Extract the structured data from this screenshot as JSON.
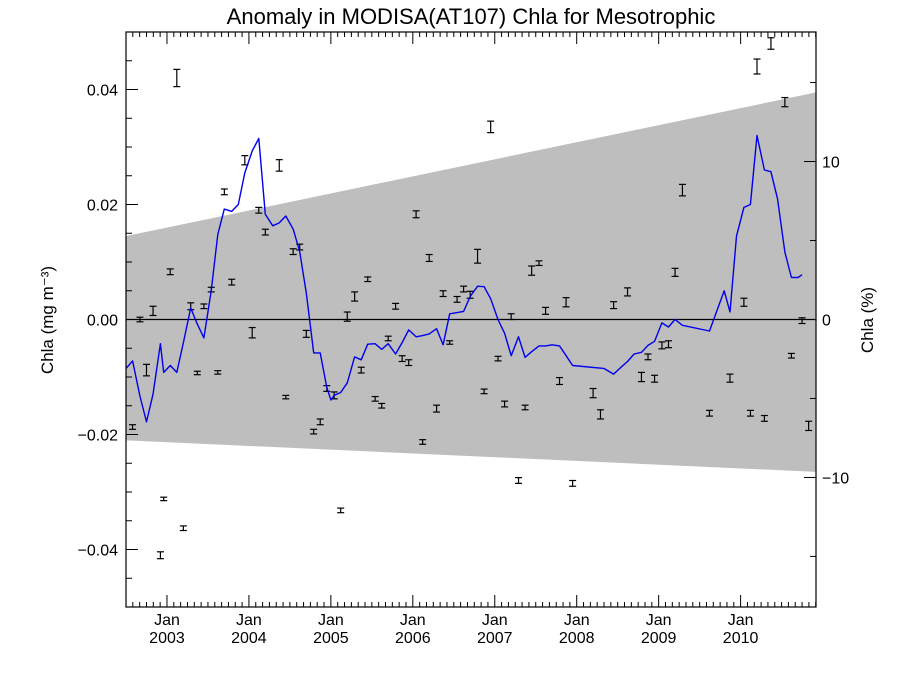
{
  "chart_data": {
    "type": "line",
    "title": "Anomaly in MODISA(AT107) Chla for Mesotrophic",
    "ylabel_left": "Chla (mg m⁻³)",
    "ylabel_right": "Chla (%)",
    "x_range": [
      2002.5,
      2010.92
    ],
    "ylim_left": [
      -0.05,
      0.05
    ],
    "ylim_right": [
      -18.2,
      18.2
    ],
    "x_ticks": [
      {
        "value": 2003.0,
        "month": "Jan",
        "year": "2003"
      },
      {
        "value": 2004.0,
        "month": "Jan",
        "year": "2004"
      },
      {
        "value": 2005.0,
        "month": "Jan",
        "year": "2005"
      },
      {
        "value": 2006.0,
        "month": "Jan",
        "year": "2006"
      },
      {
        "value": 2007.0,
        "month": "Jan",
        "year": "2007"
      },
      {
        "value": 2008.0,
        "month": "Jan",
        "year": "2008"
      },
      {
        "value": 2009.0,
        "month": "Jan",
        "year": "2009"
      },
      {
        "value": 2010.0,
        "month": "Jan",
        "year": "2010"
      }
    ],
    "y_ticks_left": [
      {
        "value": 0.04,
        "label": "0.04"
      },
      {
        "value": 0.02,
        "label": "0.02"
      },
      {
        "value": 0.0,
        "label": "0.00"
      },
      {
        "value": -0.02,
        "label": "−0.02"
      },
      {
        "value": -0.04,
        "label": "−0.04"
      }
    ],
    "y_ticks_right": [
      {
        "value": 10,
        "label": "10"
      },
      {
        "value": 0,
        "label": "0"
      },
      {
        "value": -10,
        "label": "−10"
      }
    ],
    "band": {
      "upper": [
        [
          2002.5,
          0.0145
        ],
        [
          2010.92,
          0.0395
        ]
      ],
      "lower": [
        [
          2002.5,
          -0.021
        ],
        [
          2010.92,
          -0.0265
        ]
      ],
      "color": "#bebebe"
    },
    "zero_line": 0,
    "series": [
      {
        "style": "line",
        "color": "#0000ee",
        "points": [
          [
            2002.5,
            -0.0085
          ],
          [
            2002.58,
            -0.0072
          ],
          [
            2002.67,
            -0.0133
          ],
          [
            2002.75,
            -0.0178
          ],
          [
            2002.83,
            -0.013
          ],
          [
            2002.92,
            -0.0042
          ],
          [
            2002.96,
            -0.0092
          ],
          [
            2003.04,
            -0.008
          ],
          [
            2003.12,
            -0.0092
          ],
          [
            2003.2,
            -0.004
          ],
          [
            2003.29,
            0.002
          ],
          [
            2003.37,
            -0.0008
          ],
          [
            2003.45,
            -0.0032
          ],
          [
            2003.54,
            0.005
          ],
          [
            2003.62,
            0.0148
          ],
          [
            2003.7,
            0.0192
          ],
          [
            2003.79,
            0.0188
          ],
          [
            2003.87,
            0.02
          ],
          [
            2003.95,
            0.0255
          ],
          [
            2004.04,
            0.0293
          ],
          [
            2004.12,
            0.0315
          ],
          [
            2004.2,
            0.0183
          ],
          [
            2004.29,
            0.0163
          ],
          [
            2004.37,
            0.0168
          ],
          [
            2004.45,
            0.018
          ],
          [
            2004.54,
            0.0157
          ],
          [
            2004.62,
            0.0118
          ],
          [
            2004.7,
            0.0046
          ],
          [
            2004.79,
            -0.0058
          ],
          [
            2004.87,
            -0.0058
          ],
          [
            2004.95,
            -0.0118
          ],
          [
            2005.0,
            -0.014
          ],
          [
            2005.04,
            -0.0132
          ],
          [
            2005.12,
            -0.0127
          ],
          [
            2005.2,
            -0.011
          ],
          [
            2005.29,
            -0.0065
          ],
          [
            2005.37,
            -0.007
          ],
          [
            2005.45,
            -0.0043
          ],
          [
            2005.54,
            -0.0042
          ],
          [
            2005.62,
            -0.0052
          ],
          [
            2005.7,
            -0.0042
          ],
          [
            2005.79,
            -0.006
          ],
          [
            2005.87,
            -0.004
          ],
          [
            2005.95,
            -0.0018
          ],
          [
            2006.04,
            -0.003
          ],
          [
            2006.12,
            -0.0028
          ],
          [
            2006.2,
            -0.0025
          ],
          [
            2006.29,
            -0.0016
          ],
          [
            2006.37,
            -0.0044
          ],
          [
            2006.45,
            0.001
          ],
          [
            2006.54,
            0.0012
          ],
          [
            2006.62,
            0.0014
          ],
          [
            2006.7,
            0.004
          ],
          [
            2006.79,
            0.0058
          ],
          [
            2006.87,
            0.0057
          ],
          [
            2006.95,
            0.0036
          ],
          [
            2007.04,
            0.0
          ],
          [
            2007.12,
            -0.0024
          ],
          [
            2007.2,
            -0.0063
          ],
          [
            2007.29,
            -0.003
          ],
          [
            2007.37,
            -0.0066
          ],
          [
            2007.45,
            -0.0056
          ],
          [
            2007.54,
            -0.0046
          ],
          [
            2007.62,
            -0.0046
          ],
          [
            2007.7,
            -0.0044
          ],
          [
            2007.79,
            -0.0046
          ],
          [
            2007.87,
            -0.0063
          ],
          [
            2007.95,
            -0.008
          ],
          [
            2008.33,
            -0.0085
          ],
          [
            2008.45,
            -0.0095
          ],
          [
            2008.54,
            -0.0083
          ],
          [
            2008.62,
            -0.0073
          ],
          [
            2008.7,
            -0.006
          ],
          [
            2008.79,
            -0.0057
          ],
          [
            2008.87,
            -0.0045
          ],
          [
            2008.95,
            -0.0038
          ],
          [
            2009.04,
            -0.0006
          ],
          [
            2009.12,
            -0.0013
          ],
          [
            2009.2,
            0.0
          ],
          [
            2009.29,
            -0.001
          ],
          [
            2009.62,
            -0.002
          ],
          [
            2009.8,
            0.005
          ],
          [
            2009.87,
            0.0013
          ],
          [
            2009.95,
            0.0145
          ],
          [
            2010.04,
            0.0195
          ],
          [
            2010.12,
            0.02
          ],
          [
            2010.2,
            0.032
          ],
          [
            2010.29,
            0.026
          ],
          [
            2010.37,
            0.0257
          ],
          [
            2010.45,
            0.021
          ],
          [
            2010.54,
            0.0117
          ],
          [
            2010.62,
            0.0073
          ],
          [
            2010.7,
            0.0073
          ],
          [
            2010.75,
            0.0078
          ]
        ]
      },
      {
        "style": "errorbar",
        "color": "#000000",
        "points": [
          [
            2002.58,
            -0.0187,
            0.0004
          ],
          [
            2002.67,
            0.0,
            0.0004
          ],
          [
            2002.75,
            -0.0088,
            0.001
          ],
          [
            2002.83,
            0.0015,
            0.0008
          ],
          [
            2002.92,
            -0.041,
            0.0006
          ],
          [
            2002.96,
            -0.0312,
            0.0003
          ],
          [
            2003.04,
            0.0083,
            0.0005
          ],
          [
            2003.12,
            0.042,
            0.0015
          ],
          [
            2003.2,
            -0.0363,
            0.0004
          ],
          [
            2003.29,
            0.0023,
            0.0006
          ],
          [
            2003.37,
            -0.0093,
            0.0003
          ],
          [
            2003.45,
            0.0023,
            0.0004
          ],
          [
            2003.54,
            0.0052,
            0.0004
          ],
          [
            2003.62,
            -0.0092,
            0.0003
          ],
          [
            2003.7,
            0.0222,
            0.0005
          ],
          [
            2003.79,
            0.0065,
            0.0005
          ],
          [
            2003.95,
            0.0277,
            0.0008
          ],
          [
            2004.04,
            -0.0023,
            0.0009
          ],
          [
            2004.12,
            0.019,
            0.0005
          ],
          [
            2004.2,
            0.0152,
            0.0005
          ],
          [
            2004.37,
            0.0268,
            0.001
          ],
          [
            2004.45,
            -0.0135,
            0.0003
          ],
          [
            2004.54,
            0.0118,
            0.0005
          ],
          [
            2004.62,
            0.0126,
            0.0005
          ],
          [
            2004.7,
            -0.0025,
            0.0006
          ],
          [
            2004.79,
            -0.0195,
            0.0004
          ],
          [
            2004.87,
            -0.0178,
            0.0005
          ],
          [
            2004.95,
            -0.012,
            0.0005
          ],
          [
            2005.04,
            -0.0132,
            0.0006
          ],
          [
            2005.12,
            -0.0332,
            0.0004
          ],
          [
            2005.2,
            0.0005,
            0.0008
          ],
          [
            2005.29,
            0.004,
            0.0008
          ],
          [
            2005.37,
            -0.0088,
            0.0005
          ],
          [
            2005.45,
            0.007,
            0.0004
          ],
          [
            2005.54,
            -0.0138,
            0.0004
          ],
          [
            2005.62,
            -0.015,
            0.0004
          ],
          [
            2005.7,
            -0.0033,
            0.0004
          ],
          [
            2005.79,
            0.0023,
            0.0005
          ],
          [
            2005.87,
            -0.0068,
            0.0005
          ],
          [
            2005.95,
            -0.0075,
            0.0005
          ],
          [
            2006.04,
            0.0183,
            0.0006
          ],
          [
            2006.12,
            -0.0213,
            0.0004
          ],
          [
            2006.2,
            0.0107,
            0.0006
          ],
          [
            2006.29,
            -0.0155,
            0.0006
          ],
          [
            2006.37,
            0.0045,
            0.0005
          ],
          [
            2006.45,
            -0.004,
            0.0003
          ],
          [
            2006.54,
            0.0035,
            0.0005
          ],
          [
            2006.62,
            0.0053,
            0.0005
          ],
          [
            2006.7,
            0.0043,
            0.0006
          ],
          [
            2006.79,
            0.011,
            0.0012
          ],
          [
            2006.87,
            -0.0125,
            0.0004
          ],
          [
            2006.95,
            0.0335,
            0.001
          ],
          [
            2007.04,
            -0.0068,
            0.0004
          ],
          [
            2007.12,
            -0.0147,
            0.0005
          ],
          [
            2007.2,
            0.0005,
            0.0005
          ],
          [
            2007.29,
            -0.028,
            0.0005
          ],
          [
            2007.37,
            -0.0153,
            0.0004
          ],
          [
            2007.45,
            0.0085,
            0.0008
          ],
          [
            2007.54,
            0.0098,
            0.0004
          ],
          [
            2007.62,
            0.0015,
            0.0006
          ],
          [
            2007.79,
            -0.0107,
            0.0006
          ],
          [
            2007.87,
            0.003,
            0.0008
          ],
          [
            2007.95,
            -0.0285,
            0.0005
          ],
          [
            2008.2,
            -0.0128,
            0.0008
          ],
          [
            2008.29,
            -0.0165,
            0.0008
          ],
          [
            2008.45,
            0.0025,
            0.0006
          ],
          [
            2008.62,
            0.0048,
            0.0007
          ],
          [
            2008.79,
            -0.01,
            0.0008
          ],
          [
            2008.87,
            -0.0065,
            0.0005
          ],
          [
            2008.95,
            -0.0103,
            0.0006
          ],
          [
            2009.04,
            -0.0045,
            0.0006
          ],
          [
            2009.12,
            -0.0043,
            0.0006
          ],
          [
            2009.2,
            0.0082,
            0.0007
          ],
          [
            2009.29,
            0.0225,
            0.001
          ],
          [
            2009.62,
            -0.0163,
            0.0005
          ],
          [
            2009.87,
            -0.0102,
            0.0007
          ],
          [
            2010.04,
            0.003,
            0.0007
          ],
          [
            2010.12,
            -0.0163,
            0.0005
          ],
          [
            2010.2,
            0.044,
            0.0013
          ],
          [
            2010.29,
            -0.0172,
            0.0005
          ],
          [
            2010.37,
            0.048,
            0.001
          ],
          [
            2010.54,
            0.0378,
            0.0008
          ],
          [
            2010.62,
            -0.0063,
            0.0004
          ],
          [
            2010.75,
            -0.0002,
            0.0005
          ],
          [
            2010.83,
            -0.0185,
            0.0008
          ]
        ]
      }
    ]
  }
}
